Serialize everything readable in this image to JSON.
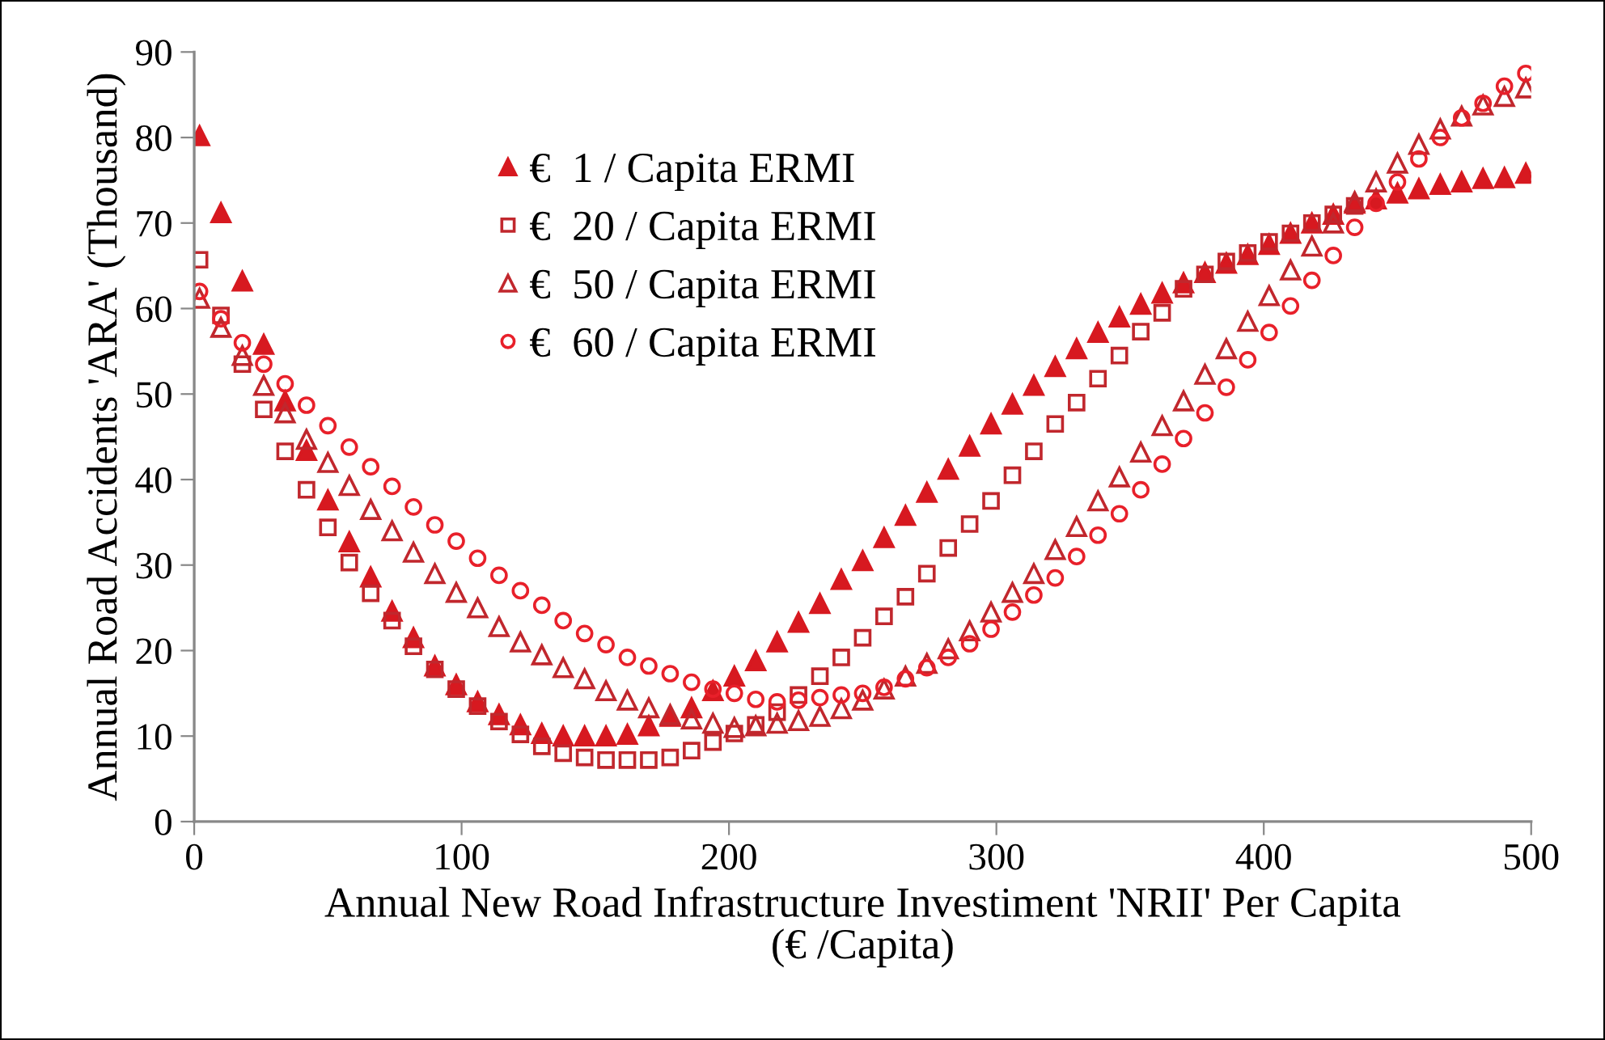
{
  "chart_data": {
    "type": "scatter",
    "xlabel": "Annual New Road Infrastructure Investiment 'NRII' Per Capita\n(€ /Capita)",
    "ylabel": "Annual Road Accidents 'ARA' (Thousand)",
    "x": [
      2,
      10,
      18,
      26,
      34,
      42,
      50,
      58,
      66,
      74,
      82,
      90,
      98,
      106,
      114,
      122,
      130,
      138,
      146,
      154,
      162,
      170,
      178,
      186,
      194,
      202,
      210,
      218,
      226,
      234,
      242,
      250,
      258,
      266,
      274,
      282,
      290,
      298,
      306,
      314,
      322,
      330,
      338,
      346,
      354,
      362,
      370,
      378,
      386,
      394,
      402,
      410,
      418,
      426,
      434,
      442,
      450,
      458,
      466,
      474,
      482,
      490,
      498
    ],
    "series": [
      {
        "name": "€  1 / Capita ERMI",
        "color": "#d71920",
        "marker": "triangle",
        "values": [
          80.2,
          71.2,
          63.2,
          55.8,
          49.2,
          43.4,
          37.6,
          32.7,
          28.6,
          24.6,
          21.5,
          18.2,
          16.0,
          14.0,
          12.5,
          11.3,
          10.3,
          10.0,
          10.0,
          10.0,
          10.2,
          11.2,
          12.3,
          13.3,
          15.3,
          17.0,
          18.8,
          21.0,
          23.3,
          25.5,
          28.3,
          30.5,
          33.2,
          35.8,
          38.5,
          41.2,
          43.9,
          46.5,
          48.8,
          51.0,
          53.2,
          55.3,
          57.2,
          59.0,
          60.5,
          61.8,
          63.0,
          64.2,
          65.3,
          66.3,
          67.5,
          68.8,
          70.0,
          71.0,
          72.3,
          72.8,
          73.5,
          74.0,
          74.5,
          74.8,
          75.2,
          75.3,
          75.8
        ]
      },
      {
        "name": "€  20 / Capita ERMI",
        "color": "#c1272d",
        "marker": "square",
        "values": [
          65.7,
          59.2,
          53.5,
          48.2,
          43.3,
          38.8,
          34.4,
          30.3,
          26.7,
          23.5,
          20.5,
          17.8,
          15.5,
          13.5,
          11.7,
          10.2,
          8.8,
          8.0,
          7.5,
          7.2,
          7.2,
          7.2,
          7.5,
          8.3,
          9.3,
          10.3,
          11.3,
          12.8,
          14.8,
          17.0,
          19.2,
          21.5,
          24.0,
          26.3,
          29.0,
          32.0,
          34.8,
          37.5,
          40.5,
          43.3,
          46.5,
          49.0,
          51.8,
          54.5,
          57.3,
          59.5,
          62.3,
          64.0,
          65.5,
          66.5,
          67.8,
          68.8,
          70.0,
          71.0,
          72.0,
          null,
          null,
          null,
          null,
          null,
          null,
          null,
          null
        ]
      },
      {
        "name": "€  50 / Capita ERMI",
        "color": "#c1272d",
        "marker": "triangle",
        "values": [
          61.2,
          57.8,
          54.5,
          51.0,
          47.8,
          44.7,
          42.0,
          39.3,
          36.5,
          34.0,
          31.5,
          29.0,
          26.8,
          25.0,
          22.8,
          21.0,
          19.5,
          18.0,
          16.7,
          15.3,
          14.2,
          13.3,
          12.5,
          12.0,
          11.5,
          11.0,
          11.2,
          11.5,
          11.8,
          12.3,
          13.2,
          14.2,
          15.5,
          17.0,
          18.5,
          20.2,
          22.3,
          24.5,
          26.8,
          29.0,
          31.8,
          34.5,
          37.5,
          40.3,
          43.2,
          46.3,
          49.2,
          52.3,
          55.3,
          58.5,
          61.5,
          64.5,
          67.3,
          70.0,
          72.5,
          74.8,
          77.0,
          79.2,
          81.0,
          82.5,
          83.8,
          84.8,
          85.8
        ]
      },
      {
        "name": "€  60 / Capita ERMI",
        "color": "#e8202a",
        "marker": "circle",
        "values": [
          62.0,
          58.8,
          56.0,
          53.5,
          51.2,
          48.7,
          46.3,
          43.8,
          41.5,
          39.2,
          36.8,
          34.7,
          32.8,
          30.8,
          28.8,
          27.0,
          25.3,
          23.5,
          22.0,
          20.7,
          19.2,
          18.2,
          17.3,
          16.3,
          15.5,
          15.0,
          14.3,
          14.0,
          14.2,
          14.5,
          14.8,
          15.0,
          15.7,
          16.7,
          18.0,
          19.2,
          20.8,
          22.5,
          24.5,
          26.5,
          28.5,
          31.0,
          33.5,
          36.0,
          38.8,
          41.8,
          44.8,
          47.8,
          50.8,
          54.0,
          57.2,
          60.3,
          63.3,
          66.2,
          69.5,
          72.3,
          74.8,
          77.5,
          80.0,
          82.3,
          84.0,
          86.0,
          87.5
        ]
      }
    ],
    "xlim": [
      0,
      500
    ],
    "xticks": [
      0,
      100,
      200,
      300,
      400,
      500
    ],
    "ylim": [
      0,
      90
    ],
    "yticks": [
      0,
      10,
      20,
      30,
      40,
      50,
      60,
      70,
      80,
      90
    ],
    "grid": false,
    "legend": "top left"
  }
}
